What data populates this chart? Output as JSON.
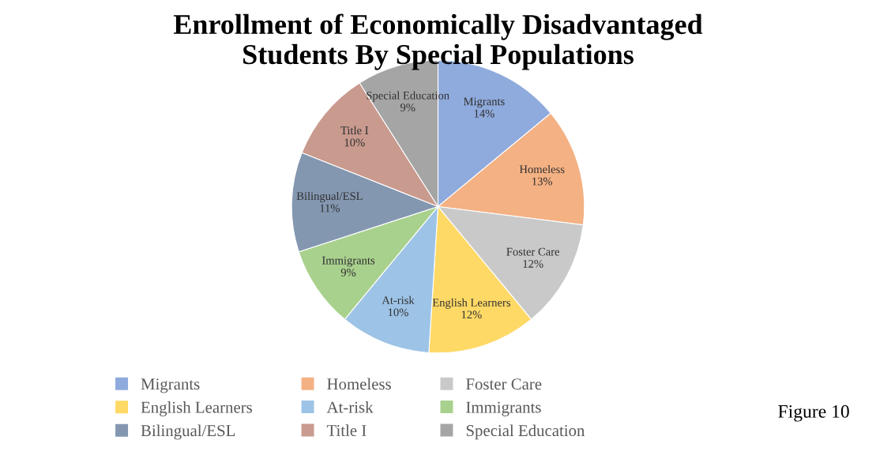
{
  "chart_data": {
    "type": "pie",
    "title": "Enrollment of Economically Disadvantaged\nStudents By Special Populations",
    "categories": [
      "Migrants",
      "Homeless",
      "Foster Care",
      "English Learners",
      "At-risk",
      "Immigrants",
      "Bilingual/ESL",
      "Title I",
      "Special Education"
    ],
    "values": [
      14,
      13,
      12,
      12,
      10,
      9,
      11,
      10,
      9
    ],
    "value_labels": [
      "14%",
      "13%",
      "12%",
      "12%",
      "10%",
      "9%",
      "11%",
      "10%",
      "9%"
    ],
    "colors": [
      "#8faadc",
      "#f4b183",
      "#c9c9c9",
      "#ffd966",
      "#9dc3e6",
      "#a9d18e",
      "#8497b0",
      "#c99a8e",
      "#a5a5a5"
    ],
    "legend": "bottom",
    "annotations": [
      "Figure 10"
    ]
  }
}
